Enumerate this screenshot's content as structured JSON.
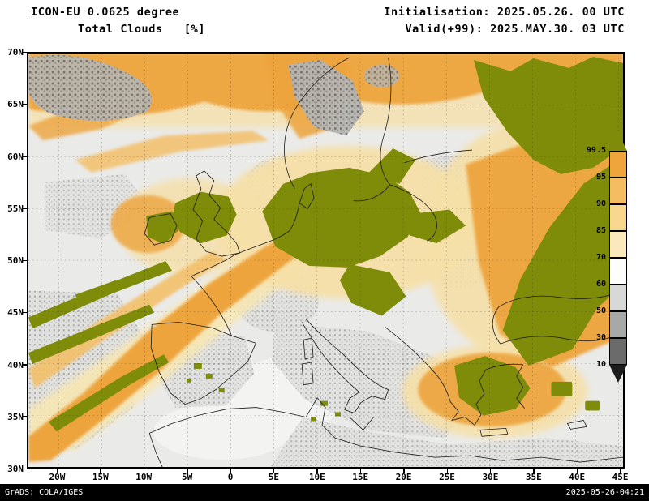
{
  "header": {
    "model_title": "ICON-EU 0.0625 degree",
    "field_title": "Total Clouds   [%]",
    "initialisation": "Initialisation: 2025.05.26. 00 UTC",
    "valid": "Valid(+99): 2025.MAY.30. 03 UTC"
  },
  "axes": {
    "lat_labels": [
      "70N",
      "65N",
      "60N",
      "55N",
      "50N",
      "45N",
      "40N",
      "35N",
      "30N"
    ],
    "lon_labels": [
      "20W",
      "15W",
      "10W",
      "5W",
      "0",
      "5E",
      "10E",
      "15E",
      "20E",
      "25E",
      "30E",
      "35E",
      "40E",
      "45E"
    ]
  },
  "legend": {
    "tick_labels": [
      "99.5",
      "95",
      "90",
      "85",
      "70",
      "60",
      "50",
      "30",
      "10"
    ],
    "over_color": "#7e8c09",
    "under_color": "#1c1c1c",
    "segment_colors": [
      "#f0a43c",
      "#f4bd62",
      "#f8d88e",
      "#fbe9bd",
      "#fdfdfb",
      "#d8d8d8",
      "#a8a8a8",
      "#6b6b6b"
    ]
  },
  "map_colors": {
    "overcast_olive": "#7e8c09",
    "high_cloud_orange": "#eda43e",
    "clear_background": "#eaeae8"
  },
  "footer": {
    "credit": "GrADS: COLA/IGES",
    "timestamp": "2025-05-26-04:21"
  },
  "chart_data": {
    "type": "heatmap",
    "title": "Total Clouds [%]",
    "units": "%",
    "x_tick_labels": [
      "20W",
      "15W",
      "10W",
      "5W",
      "0",
      "5E",
      "10E",
      "15E",
      "20E",
      "25E",
      "30E",
      "35E",
      "40E",
      "45E"
    ],
    "y_tick_labels": [
      "70N",
      "65N",
      "60N",
      "55N",
      "50N",
      "45N",
      "40N",
      "35N",
      "30N"
    ],
    "color_scale_breaks": [
      10,
      30,
      50,
      60,
      70,
      85,
      90,
      95,
      99.5
    ],
    "legend_position": "right"
  }
}
